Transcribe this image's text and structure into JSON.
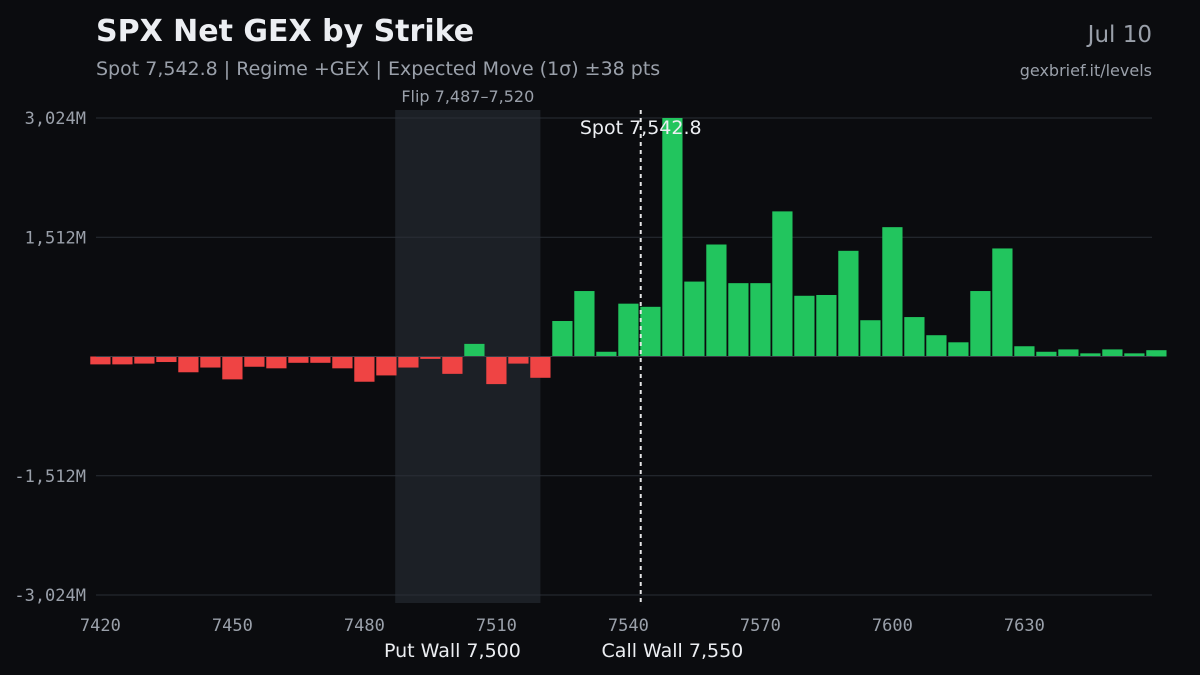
{
  "header": {
    "title": "SPX Net GEX by Strike",
    "subtitle": "Spot 7,542.8 | Regime +GEX | Expected Move (1σ) ±38 pts",
    "date": "Jul 10",
    "source": "gexbrief.it/levels"
  },
  "colors": {
    "background": "#0b0c0f",
    "positive": "#22c55e",
    "negative": "#ef4444",
    "grid": "#2a2e36",
    "flip_zone": "#1c2026",
    "spot_line": "#e6e6e6",
    "tick_text": "#9aa0aa"
  },
  "chart_data": {
    "type": "bar",
    "x": [
      7420,
      7425,
      7430,
      7435,
      7440,
      7445,
      7450,
      7455,
      7460,
      7465,
      7470,
      7475,
      7480,
      7485,
      7490,
      7495,
      7500,
      7505,
      7510,
      7515,
      7520,
      7525,
      7530,
      7535,
      7540,
      7545,
      7550,
      7555,
      7560,
      7565,
      7570,
      7575,
      7580,
      7585,
      7590,
      7595,
      7600,
      7605,
      7610,
      7615,
      7620,
      7625,
      7630,
      7635,
      7640,
      7645,
      7650,
      7655,
      7660
    ],
    "values": [
      -100,
      -100,
      -90,
      -70,
      -200,
      -140,
      -290,
      -130,
      -150,
      -80,
      -80,
      -150,
      -320,
      -240,
      -140,
      -30,
      -220,
      160,
      -350,
      -90,
      -270,
      450,
      830,
      60,
      670,
      630,
      3024,
      950,
      1420,
      930,
      930,
      1840,
      770,
      780,
      1340,
      460,
      1640,
      500,
      270,
      180,
      830,
      1370,
      130,
      60,
      90,
      40,
      90,
      40,
      80
    ],
    "xlim": [
      7419,
      7659
    ],
    "ylim": [
      -3024,
      3024
    ],
    "yticks": [
      3024,
      1512,
      -1512,
      -3024
    ],
    "ytick_labels": [
      "3,024M",
      "1,512M",
      "-1,512M",
      "-3,024M"
    ],
    "xticks": [
      7420,
      7450,
      7480,
      7510,
      7540,
      7570,
      7600,
      7630
    ],
    "xtick_labels": [
      "7420",
      "7450",
      "7480",
      "7510",
      "7540",
      "7570",
      "7600",
      "7630"
    ],
    "grid": true,
    "spot": {
      "value": 7542.8,
      "label": "Spot 7,542.8"
    },
    "flip_zone": {
      "from": 7487,
      "to": 7520,
      "label": "Flip 7,487–7,520"
    },
    "put_wall": {
      "value": 7500,
      "label": "Put Wall 7,500"
    },
    "call_wall": {
      "value": 7550,
      "label": "Call Wall 7,550"
    }
  }
}
